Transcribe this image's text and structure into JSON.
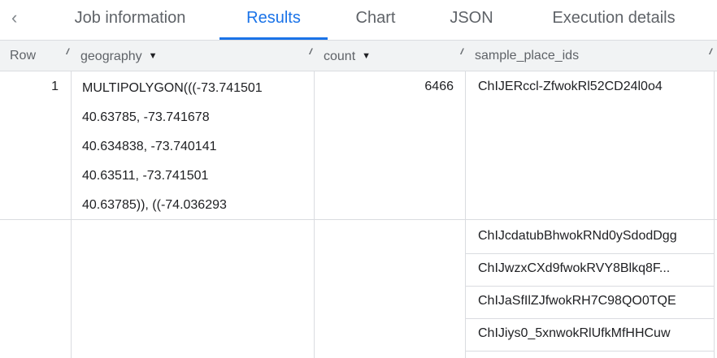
{
  "tabs": {
    "back_icon": "chevron-left-icon",
    "items": [
      {
        "label": "Job information"
      },
      {
        "label": "Results",
        "active": true
      },
      {
        "label": "Chart"
      },
      {
        "label": "JSON"
      },
      {
        "label": "Execution details"
      }
    ]
  },
  "columns": [
    {
      "label": "Row"
    },
    {
      "label": "geography",
      "sortable": true
    },
    {
      "label": "count",
      "sortable": true
    },
    {
      "label": "sample_place_ids"
    }
  ],
  "rows": [
    {
      "row": "1",
      "geography": [
        "MULTIPOLYGON(((-73.741501",
        "40.63785, -73.741678",
        "40.634838, -73.740141",
        "40.63511, -73.741501",
        "40.63785)), ((-74.036293"
      ],
      "count": "6466",
      "sample_place_ids": [
        "ChIJERccl-ZfwokRl52CD24l0o4",
        "ChIJcdatubBhwokRNd0ySdodDgg",
        "ChIJwzxCXd9fwokRVY8Blkq8F...",
        "ChIJaSfIlZJfwokRH7C98QO0TQE",
        "ChIJiys0_5xnwokRlUfkMfHHCuw"
      ]
    }
  ],
  "colors": {
    "accent": "#1a73e8",
    "header_bg": "#f1f3f4"
  }
}
